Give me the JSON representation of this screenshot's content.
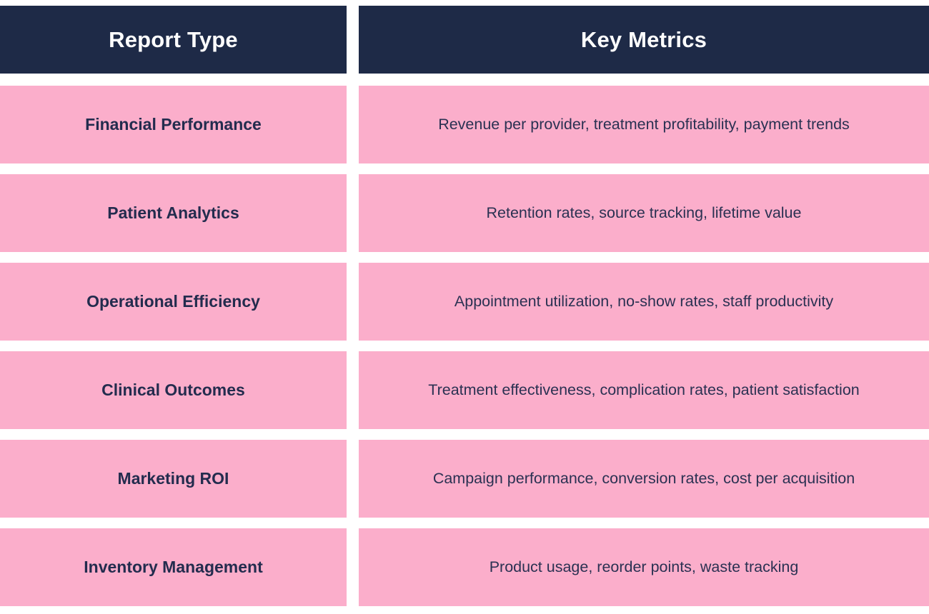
{
  "chart_data": {
    "type": "table",
    "title": "",
    "columns": [
      "Report Type",
      "Key Metrics"
    ],
    "rows": [
      [
        "Financial Performance",
        "Revenue per provider, treatment profitability, payment trends"
      ],
      [
        "Patient Analytics",
        "Retention rates, source tracking, lifetime value"
      ],
      [
        "Operational Efficiency",
        "Appointment utilization, no-show rates, staff productivity"
      ],
      [
        "Clinical Outcomes",
        "Treatment effectiveness, complication rates, patient satisfaction"
      ],
      [
        "Marketing ROI",
        "Campaign performance, conversion rates, cost per acquisition"
      ],
      [
        "Inventory Management",
        "Product usage, reorder points, waste tracking"
      ]
    ],
    "layout": {
      "header_background": "#1E2A47",
      "row_background": "#FBAECB",
      "header_text_color": "#FFFFFF",
      "row_text_color": "#232C4E",
      "page_background": "#FFFFFF"
    }
  },
  "table": {
    "header": {
      "report_type": "Report Type",
      "key_metrics": "Key Metrics"
    },
    "rows": [
      {
        "type": "Financial Performance",
        "metrics": "Revenue per provider, treatment profitability, payment trends"
      },
      {
        "type": "Patient Analytics",
        "metrics": "Retention rates, source tracking, lifetime value"
      },
      {
        "type": "Operational Efficiency",
        "metrics": "Appointment utilization, no-show rates, staff productivity"
      },
      {
        "type": "Clinical Outcomes",
        "metrics": "Treatment effectiveness, complication rates, patient satisfaction"
      },
      {
        "type": "Marketing ROI",
        "metrics": "Campaign performance, conversion rates, cost per acquisition"
      },
      {
        "type": "Inventory Management",
        "metrics": "Product usage, reorder points, waste tracking"
      }
    ]
  }
}
